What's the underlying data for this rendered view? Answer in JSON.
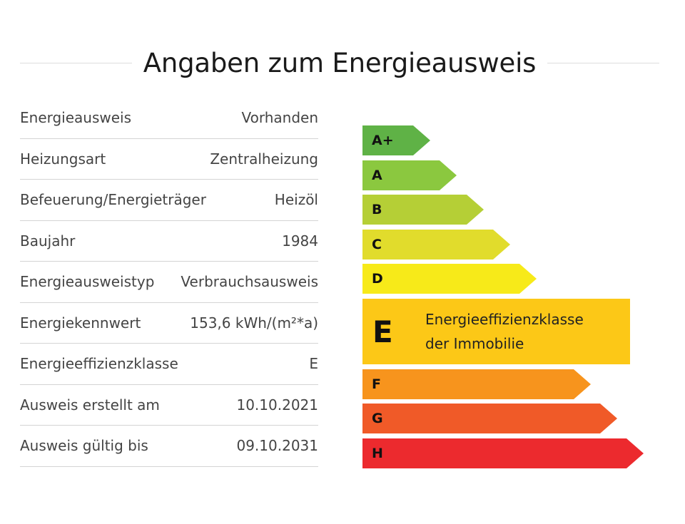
{
  "title": "Angaben zum Energieausweis",
  "details": [
    {
      "label": "Energieausweis",
      "value": "Vorhanden"
    },
    {
      "label": "Heizungsart",
      "value": "Zentralheizung"
    },
    {
      "label": "Befeuerung/Energieträger",
      "value": "Heizöl"
    },
    {
      "label": "Baujahr",
      "value": "1984"
    },
    {
      "label": "Energieausweistyp",
      "value": "Verbrauchsausweis"
    },
    {
      "label": "Energiekennwert",
      "value": "153,6 kWh/(m²*a)"
    },
    {
      "label": "Energieeffizienzklasse",
      "value": "E"
    },
    {
      "label": "Ausweis erstellt am",
      "value": "10.10.2021"
    },
    {
      "label": "Ausweis gültig bis",
      "value": "09.10.2031"
    }
  ],
  "scale": {
    "classes": [
      {
        "label": "A+",
        "color": "#5fb246"
      },
      {
        "label": "A",
        "color": "#8bc83f"
      },
      {
        "label": "B",
        "color": "#b5cf36"
      },
      {
        "label": "C",
        "color": "#e1dc2c"
      },
      {
        "label": "D",
        "color": "#f7ea19"
      },
      {
        "label": "E",
        "color": "#fcc817"
      },
      {
        "label": "F",
        "color": "#f7941d"
      },
      {
        "label": "G",
        "color": "#f05a28"
      },
      {
        "label": "H",
        "color": "#ec2a2e"
      }
    ],
    "current_class": "E",
    "current_caption_line1": "Energieeffizienzklasse",
    "current_caption_line2": "der Immobilie"
  }
}
